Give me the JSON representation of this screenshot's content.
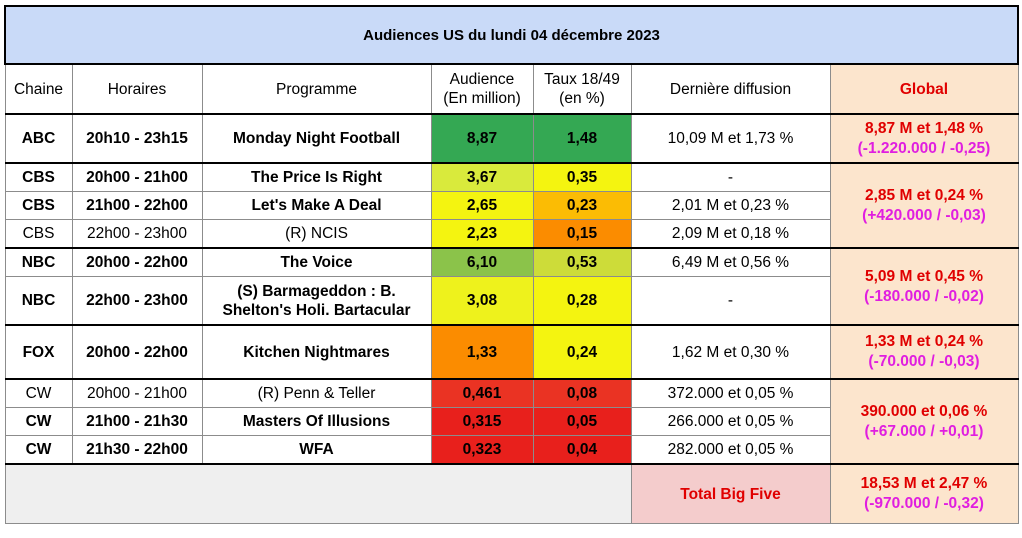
{
  "title": "Audiences US du lundi 04 décembre 2023",
  "headers": {
    "chaine": "Chaine",
    "horaires": "Horaires",
    "programme": "Programme",
    "audience_l1": "Audience",
    "audience_l2": "(En million)",
    "taux_l1": "Taux 18/49",
    "taux_l2": "(en %)",
    "derniere": "Dernière diffusion",
    "global": "Global"
  },
  "rows": [
    {
      "chaine": "ABC",
      "horaires": "20h10 - 23h15",
      "programme": "Monday Night Football",
      "audience": "8,87",
      "taux": "1,48",
      "derniere": "10,09 M et 1,73 %",
      "audience_color": "#34a853",
      "taux_color": "#34a853"
    },
    {
      "chaine": "CBS",
      "horaires": "20h00 - 21h00",
      "programme": "The Price Is Right",
      "audience": "3,67",
      "taux": "0,35",
      "derniere": "-",
      "audience_color": "#d9ea3c",
      "taux_color": "#f4f410"
    },
    {
      "chaine": "CBS",
      "horaires": "21h00 - 22h00",
      "programme": "Let's Make A Deal",
      "audience": "2,65",
      "taux": "0,23",
      "derniere": "2,01 M et 0,23 %",
      "audience_color": "#f4f410",
      "taux_color": "#fbbc04"
    },
    {
      "chaine": "CBS",
      "horaires": "22h00 - 23h00",
      "programme": "(R) NCIS",
      "audience": "2,23",
      "taux": "0,15",
      "derniere": "2,09 M et 0,18 %",
      "audience_color": "#f4f410",
      "taux_color": "#fb8c00"
    },
    {
      "chaine": "NBC",
      "horaires": "20h00 - 22h00",
      "programme": "The Voice",
      "audience": "6,10",
      "taux": "0,53",
      "derniere": "6,49 M et 0,56 %",
      "audience_color": "#8bc34a",
      "taux_color": "#cddc39"
    },
    {
      "chaine": "NBC",
      "horaires": "22h00 - 23h00",
      "programme_l1": "(S) Barmageddon : B.",
      "programme_l2": "Shelton's Holi. Bartacular",
      "audience": "3,08",
      "taux": "0,28",
      "derniere": "-",
      "audience_color": "#eef21c",
      "taux_color": "#f4f410"
    },
    {
      "chaine": "FOX",
      "horaires": "20h00 - 22h00",
      "programme": "Kitchen Nightmares",
      "audience": "1,33",
      "taux": "0,24",
      "derniere": "1,62 M et 0,30 %",
      "audience_color": "#fb8c00",
      "taux_color": "#f4f410"
    },
    {
      "chaine": "CW",
      "horaires": "20h00 - 21h00",
      "programme": "(R) Penn & Teller",
      "audience": "0,461",
      "taux": "0,08",
      "derniere": "372.000 et 0,05 %",
      "audience_color": "#ea3323",
      "taux_color": "#ea3323"
    },
    {
      "chaine": "CW",
      "horaires": "21h00 - 21h30",
      "programme": "Masters Of Illusions",
      "audience": "0,315",
      "taux": "0,05",
      "derniere": "266.000 et 0,05 %",
      "audience_color": "#e8201c",
      "taux_color": "#e8201c"
    },
    {
      "chaine": "CW",
      "horaires": "21h30 - 22h00",
      "programme": "WFA",
      "audience": "0,323",
      "taux": "0,04",
      "derniere": "282.000 et 0,05 %",
      "audience_color": "#e8201c",
      "taux_color": "#e8201c"
    }
  ],
  "global": {
    "abc": {
      "value": "8,87 M et 1,48 %",
      "delta": "(-1.220.000 / -0,25)"
    },
    "cbs": {
      "value": "2,85 M et 0,24 %",
      "delta": "(+420.000 / -0,03)"
    },
    "nbc": {
      "value": "5,09 M et 0,45 %",
      "delta": "(-180.000 / -0,02)"
    },
    "fox": {
      "value": "1,33 M et 0,24 %",
      "delta": "(-70.000 / -0,03)"
    },
    "cw": {
      "value": "390.000 et 0,06 %",
      "delta": "(+67.000 / +0,01)"
    }
  },
  "total": {
    "label": "Total Big Five",
    "value": "18,53 M et 2,47 %",
    "delta": "(-970.000 / -0,32)"
  },
  "colors": {
    "title_bg": "#c9daf8",
    "global_bg": "#fce5cd",
    "global_text": "#e00000",
    "delta_text": "#e01ee0",
    "total_bg": "#f4cccc"
  }
}
